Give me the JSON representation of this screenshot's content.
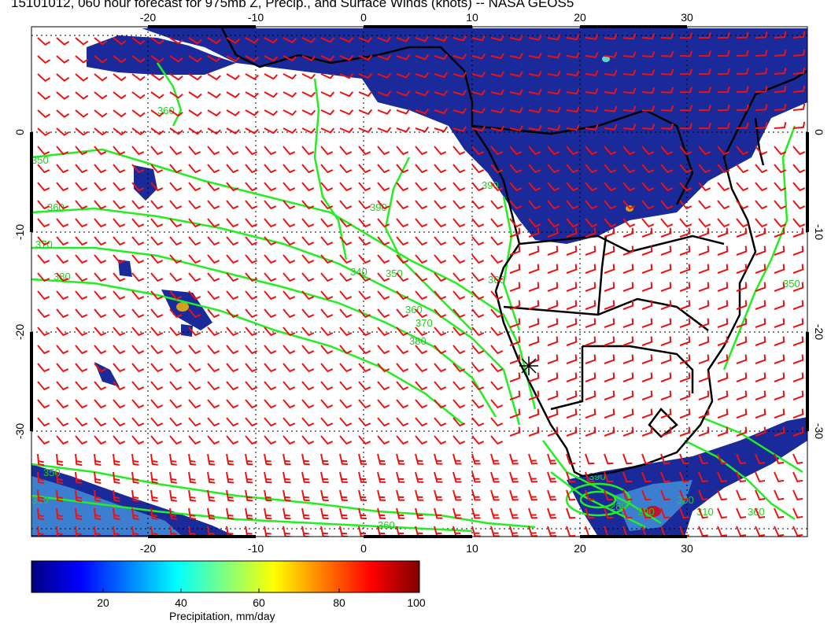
{
  "title": "15101012, 060 hour forecast for 975mb Z, Precip., and Surface Winds (knots) -- NASA GEOS5",
  "map": {
    "lon_range": [
      -30,
      40
    ],
    "lat_range": [
      -40,
      12
    ],
    "lon_ticks": [
      "-20",
      "-10",
      "0",
      "10",
      "20",
      "30"
    ],
    "lat_ticks": [
      "0",
      "-10",
      "-20",
      "-30"
    ],
    "gridlines": "dotted",
    "marker": "star near 15E, 24S",
    "colors": {
      "contours": "#22ee22",
      "wind_barbs": "#ee1111",
      "coastlines": "#000000",
      "precip_low": "#1b2a9a"
    },
    "contour_labels": [
      "360",
      "350",
      "360",
      "370",
      "380",
      "390",
      "340",
      "350",
      "360",
      "370",
      "380",
      "390",
      "360",
      "310",
      "350",
      "360",
      "390",
      "280",
      "290",
      "300",
      "310",
      "350",
      "360"
    ]
  },
  "colorbar": {
    "label": "Precipitation, mm/day",
    "ticks": [
      "20",
      "40",
      "60",
      "80",
      "100"
    ],
    "range": [
      0,
      100
    ],
    "colors": [
      "#00007f",
      "#0000ff",
      "#007fff",
      "#00ffff",
      "#7fff7f",
      "#ffff00",
      "#ff7f00",
      "#ff0000",
      "#7f0000"
    ]
  }
}
